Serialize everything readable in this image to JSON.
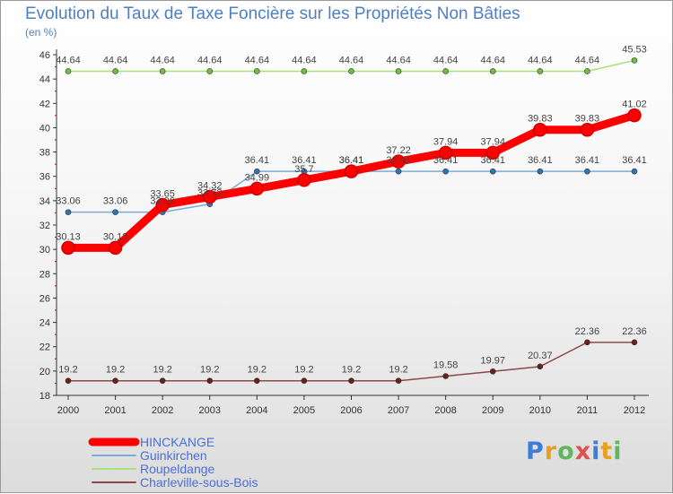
{
  "title": "Evolution du Taux de Taxe Foncière sur les Propriétés Non Bâties",
  "unit_label": "(en %)",
  "brand": {
    "letters": [
      "P",
      "r",
      "o",
      "x",
      "i",
      "t",
      "i"
    ],
    "colors": [
      "#3b7dd8",
      "#e8a020",
      "#5cb85c",
      "#d9534f",
      "#3b7dd8",
      "#e8a020",
      "#5cb85c"
    ]
  },
  "chart_data": {
    "type": "line",
    "categories": [
      "2000",
      "2001",
      "2002",
      "2003",
      "2004",
      "2005",
      "2006",
      "2007",
      "2008",
      "2009",
      "2010",
      "2011",
      "2012"
    ],
    "ylim": [
      18,
      46
    ],
    "y_ticks": [
      "18",
      "20",
      "22",
      "24",
      "26",
      "28",
      "30",
      "32",
      "34",
      "36",
      "38",
      "40",
      "42",
      "44",
      "46"
    ],
    "grid": false,
    "legend_position": "bottom-left",
    "series": [
      {
        "name": "HINCKANGE",
        "color": "#ff0000",
        "marker": "#ff0000",
        "values": [
          30.13,
          30.13,
          33.65,
          34.32,
          34.99,
          35.7,
          36.41,
          37.22,
          37.94,
          37.94,
          39.83,
          39.83,
          41.02
        ],
        "labels": [
          "30.13",
          "30.13",
          "33.65",
          "34.32",
          "34.99",
          "35.7",
          "36.41",
          "37.22",
          "37.94",
          "37.94",
          "39.83",
          "39.83",
          "41.02"
        ]
      },
      {
        "name": "Guinkirchen",
        "color": "#7eaad4",
        "marker": "#2e75b6",
        "values": [
          33.06,
          33.06,
          33.06,
          33.72,
          36.41,
          36.41,
          36.41,
          36.41,
          36.41,
          36.41,
          36.41,
          36.41,
          36.41
        ],
        "labels": [
          "33.06",
          "33.06",
          "33.06",
          "33.72",
          "36.41",
          "36.41",
          "36.41",
          "36.41",
          "36.41",
          "36.41",
          "36.41",
          "36.41",
          "36.41"
        ]
      },
      {
        "name": "Roupeldange",
        "color": "#a8e07a",
        "marker": "#6cc03c",
        "values": [
          44.64,
          44.64,
          44.64,
          44.64,
          44.64,
          44.64,
          44.64,
          44.64,
          44.64,
          44.64,
          44.64,
          44.64,
          45.53
        ],
        "labels": [
          "44.64",
          "44.64",
          "44.64",
          "44.64",
          "44.64",
          "44.64",
          "44.64",
          "44.64",
          "44.64",
          "44.64",
          "44.64",
          "44.64",
          "45.53"
        ]
      },
      {
        "name": "Charleville-sous-Bois",
        "color": "#8b4a4a",
        "marker": "#6b1f1f",
        "values": [
          19.2,
          19.2,
          19.2,
          19.2,
          19.2,
          19.2,
          19.2,
          19.2,
          19.58,
          19.97,
          20.37,
          22.36,
          22.36
        ],
        "labels": [
          "19.2",
          "19.2",
          "19.2",
          "19.2",
          "19.2",
          "19.2",
          "19.2",
          "19.2",
          "19.58",
          "19.97",
          "20.37",
          "22.36",
          "22.36"
        ]
      }
    ]
  }
}
